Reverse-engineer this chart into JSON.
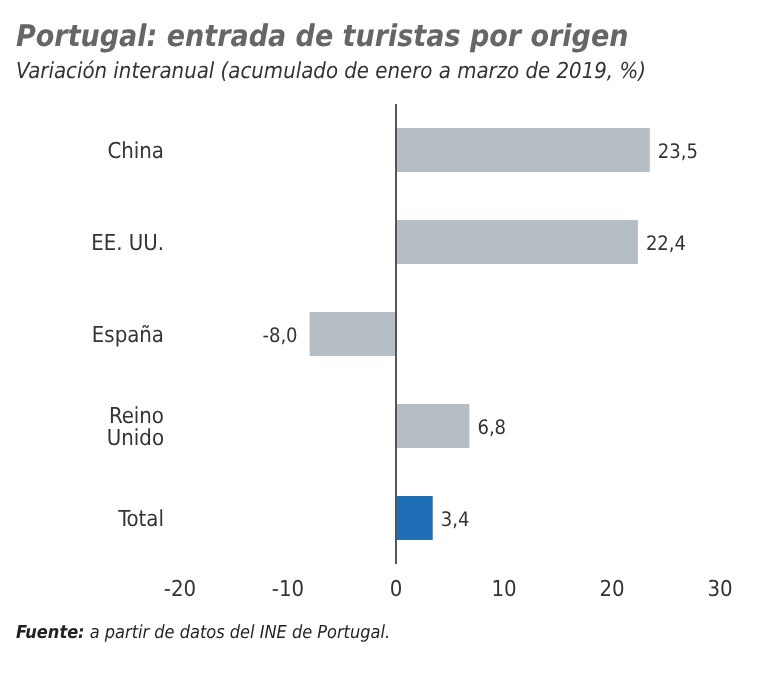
{
  "chart_data": {
    "type": "bar",
    "orientation": "horizontal",
    "title": "Portugal: entrada de turistas por origen",
    "subtitle": "Variación interanual (acumulado de enero a marzo de 2019, %)",
    "categories": [
      "China",
      "EE. UU.",
      "España",
      "Reino Unido",
      "Total"
    ],
    "values": [
      23.5,
      22.4,
      -8.0,
      6.8,
      3.4
    ],
    "colors": [
      "#b5bec5",
      "#b5bec5",
      "#b5bec5",
      "#b5bec5",
      "#1f6fb6"
    ],
    "value_labels": [
      "23,5",
      "22,4",
      "-8,0",
      "6,8",
      "3,4"
    ],
    "xlim": [
      -20,
      30
    ],
    "xticks": [
      -20,
      -10,
      0,
      10,
      20,
      30
    ],
    "ref_lines": [
      {
        "axis": "x",
        "value": 0,
        "color": "#555555"
      }
    ],
    "grid": false,
    "annotations": [
      "Fuente: a partir de datos del INE de Portugal."
    ]
  }
}
